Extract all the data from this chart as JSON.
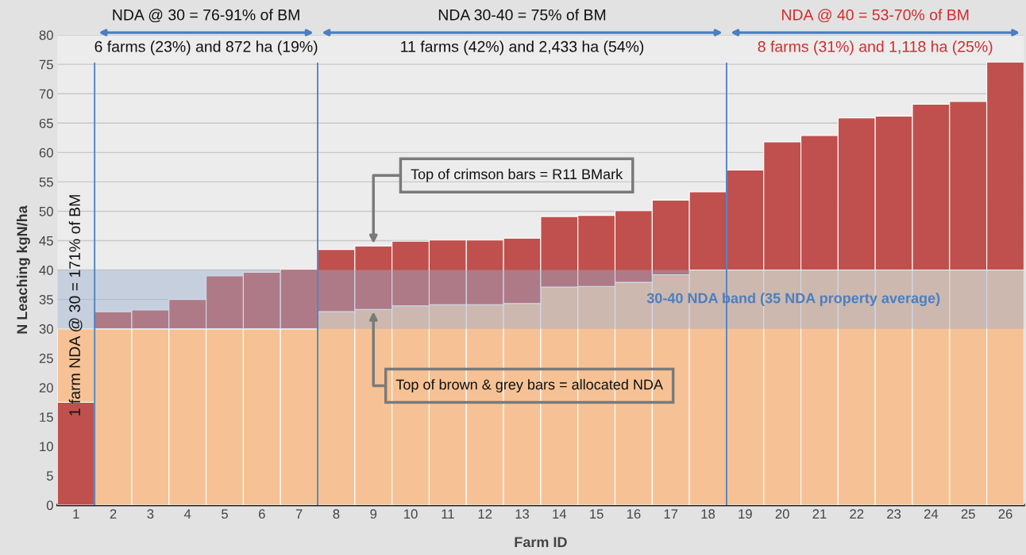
{
  "chart_data": {
    "type": "bar",
    "xlabel": "Farm ID",
    "ylabel": "N Leaching kgN/ha",
    "categories": [
      "1",
      "2",
      "3",
      "4",
      "5",
      "6",
      "7",
      "8",
      "9",
      "10",
      "11",
      "12",
      "13",
      "14",
      "15",
      "16",
      "17",
      "18",
      "19",
      "20",
      "21",
      "22",
      "23",
      "24",
      "25",
      "26"
    ],
    "stacked": true,
    "series": [
      {
        "color": "#c0504d",
        "values": [
          17.5,
          null,
          null,
          null,
          null,
          null,
          null,
          null,
          null,
          null,
          null,
          null,
          null,
          null,
          null,
          null,
          null,
          null,
          null,
          null,
          null,
          null,
          null,
          null,
          null,
          null
        ]
      },
      {
        "color": "#f6c295",
        "values": [
          12.5,
          30,
          30,
          30,
          30,
          30,
          30,
          32.9,
          33.3,
          33.9,
          34.1,
          34.1,
          34.3,
          37.1,
          37.2,
          37.9,
          39.2,
          40,
          40,
          40,
          40,
          40,
          40,
          40,
          40,
          40
        ]
      },
      {
        "color": "#c0504d",
        "values": [
          null,
          2.9,
          3.2,
          5.0,
          9.0,
          9.6,
          10.1,
          10.6,
          10.8,
          11.0,
          11.0,
          11.0,
          11.1,
          12.0,
          12.1,
          12.2,
          12.7,
          13.3,
          17.0,
          21.8,
          22.9,
          25.9,
          26.2,
          28.2,
          28.7,
          35.4
        ]
      }
    ],
    "ylim": [
      0,
      80
    ],
    "yticks": [
      0,
      5,
      10,
      15,
      20,
      25,
      30,
      35,
      40,
      45,
      50,
      55,
      60,
      65,
      70,
      75,
      80
    ],
    "grid": "y",
    "bands": [
      {
        "axis": "y",
        "from": 30,
        "to": 40,
        "label": "30-40 NDA band (35 NDA property average)",
        "color": "#9aaccf"
      }
    ],
    "annotations": [
      "NDA @ 30 = 76-91% of BM",
      "6 farms (23%) and 872 ha (19%)",
      "NDA 30-40 = 75% of BM",
      "11 farms (42%) and 2,433 ha (54%)",
      "NDA @ 40 = 53-70% of BM",
      "8 farms (31%) and 1,118 ha (25%)",
      "1 farm NDA @ 30 = 171% of BM",
      {
        "text": "Top of crimson bars = R11 BMark",
        "x": "9",
        "y": 44.1
      },
      {
        "text": "Top of brown & grey bars = allocated NDA",
        "x": "9",
        "y": 33.3
      }
    ]
  }
}
